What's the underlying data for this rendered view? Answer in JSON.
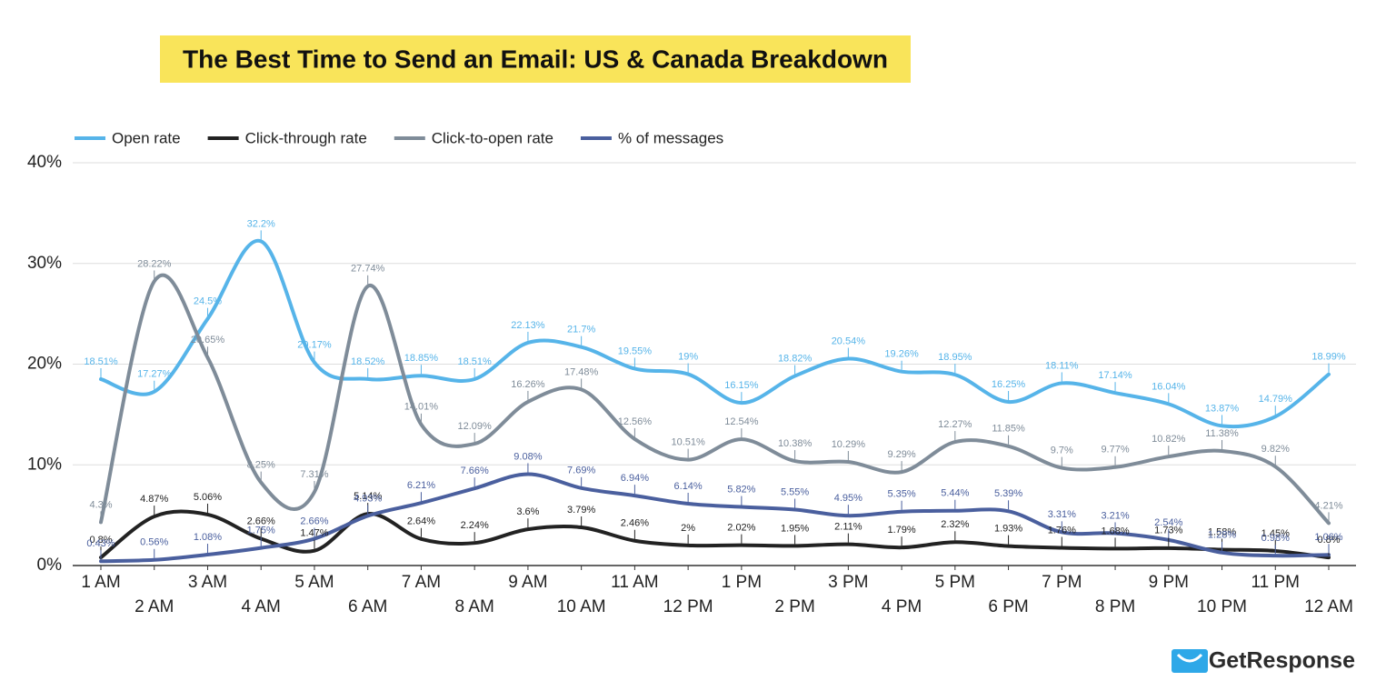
{
  "chart_data": {
    "type": "line",
    "title": "The Best Time to Send an Email: US & Canada Breakdown",
    "brand": "GetResponse",
    "categories": [
      "1 AM",
      "2 AM",
      "3 AM",
      "4 AM",
      "5 AM",
      "6 AM",
      "7 AM",
      "8 AM",
      "9 AM",
      "10 AM",
      "11 AM",
      "12 PM",
      "1 PM",
      "2 PM",
      "3 PM",
      "4 PM",
      "5 PM",
      "6 PM",
      "7 PM",
      "8 PM",
      "9 PM",
      "10 PM",
      "11 PM",
      "12 AM"
    ],
    "ylim": [
      0,
      40
    ],
    "yticks": [
      {
        "value": 0,
        "label": "0%"
      },
      {
        "value": 10,
        "label": "10%"
      },
      {
        "value": 20,
        "label": "20%"
      },
      {
        "value": 30,
        "label": "30%"
      },
      {
        "value": 40,
        "label": "40%"
      }
    ],
    "grid": true,
    "legend": "top",
    "series": [
      {
        "name": "Open rate",
        "color": "#56b4e9",
        "values": [
          18.51,
          17.27,
          24.5,
          32.2,
          20.17,
          18.52,
          18.85,
          18.51,
          22.13,
          21.7,
          19.55,
          19,
          16.15,
          18.82,
          20.54,
          19.26,
          18.95,
          16.25,
          18.11,
          17.14,
          16.04,
          13.87,
          14.79,
          18.99
        ],
        "value_labels": [
          "18.51%",
          "17.27%",
          "24.5%",
          "32.2%",
          "20.17%",
          "18.52%",
          "18.85%",
          "18.51%",
          "22.13%",
          "21.7%",
          "19.55%",
          "19%",
          "16.15%",
          "18.82%",
          "20.54%",
          "19.26%",
          "18.95%",
          "16.25%",
          "18.11%",
          "17.14%",
          "16.04%",
          "13.87%",
          "14.79%",
          "18.99%"
        ]
      },
      {
        "name": "Click-through rate",
        "color": "#222222",
        "values": [
          0.8,
          4.87,
          5.06,
          2.66,
          1.47,
          5.14,
          2.64,
          2.24,
          3.6,
          3.79,
          2.46,
          2,
          2.02,
          1.95,
          2.11,
          1.79,
          2.32,
          1.93,
          1.76,
          1.68,
          1.73,
          1.58,
          1.45,
          0.8
        ],
        "value_labels": [
          "0.8%",
          "4.87%",
          "5.06%",
          "2.66%",
          "1.47%",
          "5.14%",
          "2.64%",
          "2.24%",
          "3.6%",
          "3.79%",
          "2.46%",
          "2%",
          "2.02%",
          "1.95%",
          "2.11%",
          "1.79%",
          "2.32%",
          "1.93%",
          "1.76%",
          "1.68%",
          "1.73%",
          "1.58%",
          "1.45%",
          "0.8%"
        ]
      },
      {
        "name": "Click-to-open rate",
        "color": "#7f8c99",
        "values": [
          4.3,
          28.22,
          20.65,
          8.25,
          7.31,
          27.74,
          14.01,
          12.09,
          16.26,
          17.48,
          12.56,
          10.51,
          12.54,
          10.38,
          10.29,
          9.29,
          12.27,
          11.85,
          9.7,
          9.77,
          10.82,
          11.38,
          9.82,
          4.21
        ],
        "value_labels": [
          "4.3%",
          "28.22%",
          "20.65%",
          "8.25%",
          "7.31%",
          "27.74%",
          "14.01%",
          "12.09%",
          "16.26%",
          "17.48%",
          "12.56%",
          "10.51%",
          "12.54%",
          "10.38%",
          "10.29%",
          "9.29%",
          "12.27%",
          "11.85%",
          "9.7%",
          "9.77%",
          "10.82%",
          "11.38%",
          "9.82%",
          "4.21%"
        ]
      },
      {
        "name": "% of messages",
        "color": "#4a5f9e",
        "values": [
          0.43,
          0.56,
          1.08,
          1.75,
          2.66,
          4.93,
          6.21,
          7.66,
          9.08,
          7.69,
          6.94,
          6.14,
          5.82,
          5.55,
          4.95,
          5.35,
          5.44,
          5.39,
          3.31,
          3.21,
          2.54,
          1.28,
          0.98,
          1.06
        ],
        "value_labels": [
          "0.43%",
          "0.56%",
          "1.08%",
          "1.75%",
          "2.66%",
          "4.93%",
          "6.21%",
          "7.66%",
          "9.08%",
          "7.69%",
          "6.94%",
          "6.14%",
          "5.82%",
          "5.55%",
          "4.95%",
          "5.35%",
          "5.44%",
          "5.39%",
          "3.31%",
          "3.21%",
          "2.54%",
          "1.28%",
          "0.98%",
          "1.06%"
        ]
      }
    ]
  }
}
